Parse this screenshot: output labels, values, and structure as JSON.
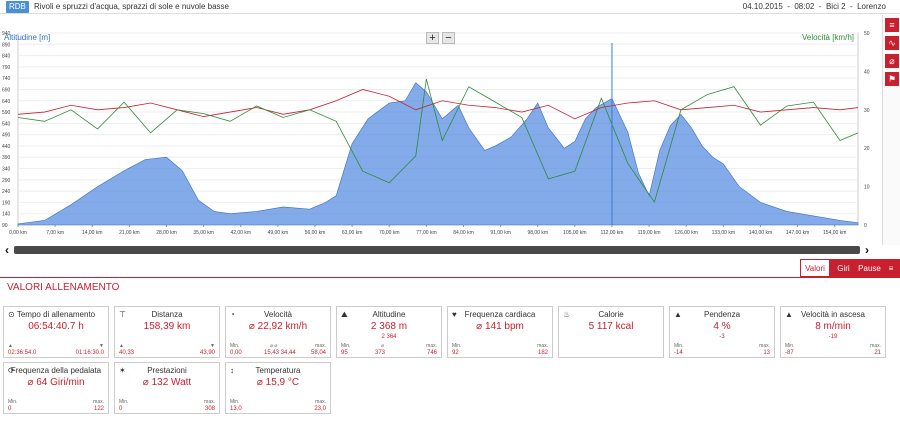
{
  "header": {
    "badge": "RDB",
    "description": "Rivoli e spruzzi d'acqua, sprazzi di sole e nuvole basse",
    "date": "04.10.2015",
    "time": "08:02",
    "bike": "Bici 2",
    "user": "Lorenzo"
  },
  "chart": {
    "left_axis_title": "Altitudine [m]",
    "right_axis_title": "Velocità [km/h]",
    "zoom_in": "+",
    "zoom_out": "−"
  },
  "chart_data": {
    "type": "area",
    "xlabel": "",
    "x_ticks": [
      "0,00 km",
      "7,00 km",
      "14,00 km",
      "21,00 km",
      "28,00 km",
      "35,00 km",
      "42,00 km",
      "49,00 km",
      "56,00 km",
      "63,00 km",
      "70,00 km",
      "77,00 km",
      "84,00 km",
      "91,00 km",
      "98,00 km",
      "105,00 km",
      "112,00 km",
      "119,00 km",
      "126,00 km",
      "133,00 km",
      "140,00 km",
      "147,00 km",
      "154,00 km"
    ],
    "y_left_ticks": [
      "90",
      "140",
      "190",
      "240",
      "290",
      "340",
      "390",
      "440",
      "490",
      "540",
      "590",
      "640",
      "690",
      "740",
      "790",
      "840",
      "890",
      "940"
    ],
    "y_right_ticks": [
      "0",
      "10",
      "20",
      "30",
      "40",
      "50"
    ],
    "xlim": [
      0,
      158.39
    ],
    "ylim_left": [
      90,
      940
    ],
    "ylim_right": [
      0,
      50
    ],
    "series": [
      {
        "name": "Altitudine",
        "color": "#4f86e0",
        "x": [
          0,
          5,
          10,
          15,
          20,
          24,
          28,
          31,
          34,
          37,
          40,
          45,
          50,
          55,
          58,
          60,
          63,
          66,
          70,
          73,
          75,
          77,
          80,
          83,
          85,
          88,
          90,
          93,
          96,
          98,
          100,
          103,
          105,
          107,
          109,
          112,
          115,
          117,
          119,
          121,
          123,
          125,
          127,
          129,
          131,
          133,
          136,
          140,
          145,
          150,
          155,
          158.39
        ],
        "y": [
          95,
          110,
          180,
          260,
          330,
          380,
          390,
          330,
          200,
          150,
          140,
          150,
          170,
          160,
          190,
          220,
          450,
          560,
          630,
          640,
          720,
          680,
          560,
          620,
          520,
          420,
          440,
          480,
          560,
          630,
          520,
          430,
          460,
          560,
          610,
          650,
          500,
          320,
          220,
          420,
          530,
          580,
          520,
          440,
          390,
          360,
          260,
          190,
          150,
          130,
          110,
          100
        ]
      },
      {
        "name": "Velocità",
        "color": "#2e8b38",
        "x": [
          0,
          5,
          10,
          15,
          20,
          25,
          30,
          35,
          40,
          45,
          50,
          55,
          60,
          65,
          70,
          75,
          77,
          80,
          85,
          90,
          95,
          100,
          105,
          110,
          115,
          120,
          125,
          130,
          135,
          140,
          145,
          150,
          155,
          158.39
        ],
        "y": [
          28,
          27,
          30,
          25,
          32,
          24,
          30,
          29,
          27,
          31,
          28,
          30,
          27,
          14,
          11,
          18,
          38,
          22,
          36,
          32,
          28,
          12,
          14,
          33,
          16,
          6,
          30,
          34,
          36,
          26,
          31,
          32,
          22,
          24
        ]
      },
      {
        "name": "Frequenza cardiaca",
        "color": "#c9202f",
        "x": [
          0,
          5,
          10,
          15,
          20,
          25,
          30,
          35,
          40,
          45,
          50,
          55,
          60,
          65,
          70,
          75,
          80,
          85,
          90,
          95,
          100,
          105,
          110,
          115,
          120,
          125,
          130,
          135,
          140,
          145,
          150,
          155,
          158.39
        ],
        "y": [
          580,
          590,
          620,
          600,
          610,
          630,
          600,
          570,
          590,
          610,
          580,
          600,
          640,
          690,
          660,
          600,
          640,
          620,
          610,
          590,
          620,
          560,
          610,
          630,
          640,
          600,
          610,
          620,
          590,
          600,
          610,
          600,
          610
        ]
      }
    ],
    "cursor_x": 112
  },
  "tabs": [
    "Valori",
    "Giri",
    "Pause"
  ],
  "section_title": "VALORI ALLENAMENTO",
  "cards": [
    {
      "title": "Tempo di allenamento",
      "icon": "⊙",
      "main": "06:54:40.7 h",
      "sub": "",
      "left_label": "▲",
      "left": "02:36:54.0",
      "mid_label": "",
      "mid": "",
      "right_label": "▼",
      "right": "01:16:30.0"
    },
    {
      "title": "Distanza",
      "icon": "⊤",
      "main": "158,39 km",
      "sub": "",
      "left_label": "▲",
      "left": "40,33",
      "mid_label": "",
      "mid": "",
      "right_label": "▼",
      "right": "43,90"
    },
    {
      "title": "Velocità",
      "icon": "◔",
      "main": "⌀ 22,92 km/h",
      "sub": "",
      "left_label": "Min.",
      "left": "0,00",
      "mid_label": "⌀  ⌀",
      "mid": "15,43  34,44",
      "right_label": "max.",
      "right": "58,04"
    },
    {
      "title": "Altitudine",
      "icon": "⛰",
      "main": "2 368 m",
      "sub": "2 364",
      "left_label": "Min.",
      "left": "95",
      "mid_label": "⌀",
      "mid": "373",
      "right_label": "max.",
      "right": "746"
    },
    {
      "title": "Frequenza cardiaca",
      "icon": "♥",
      "main": "⌀ 141 bpm",
      "sub": "",
      "left_label": "Min.",
      "left": "92",
      "mid_label": "",
      "mid": "",
      "right_label": "max.",
      "right": "182"
    },
    {
      "title": "Calorie",
      "icon": "♨",
      "main": "5 117 kcal",
      "sub": "",
      "left_label": "",
      "left": "",
      "mid_label": "",
      "mid": "",
      "right_label": "",
      "right": ""
    },
    {
      "title": "Pendenza",
      "icon": "▲",
      "main": "4 %",
      "sub": "-3",
      "left_label": "Min.",
      "left": "-14",
      "mid_label": "",
      "mid": "",
      "right_label": "max.",
      "right": "13"
    },
    {
      "title": "Velocità in ascesa",
      "icon": "▲",
      "main": "8 m/min",
      "sub": "-19",
      "left_label": "Min.",
      "left": "-87",
      "mid_label": "",
      "mid": "",
      "right_label": "max.",
      "right": "21"
    },
    {
      "title": "Frequenza della pedalata",
      "icon": "⟳",
      "main": "⌀ 64 Giri/min",
      "sub": "",
      "left_label": "Min.",
      "left": "0",
      "mid_label": "",
      "mid": "",
      "right_label": "max.",
      "right": "122"
    },
    {
      "title": "Prestazioni",
      "icon": "✶",
      "main": "⌀ 132 Watt",
      "sub": "",
      "left_label": "Min.",
      "left": "0",
      "mid_label": "",
      "mid": "",
      "right_label": "max.",
      "right": "308"
    },
    {
      "title": "Temperatura",
      "icon": "↕",
      "main": "⌀ 15,9 °C",
      "sub": "",
      "left_label": "Min.",
      "left": "13,0",
      "mid_label": "",
      "mid": "",
      "right_label": "max.",
      "right": "23,0"
    }
  ],
  "side_tools": [
    "list-icon",
    "chart-icon",
    "no-icon",
    "pin-icon"
  ]
}
